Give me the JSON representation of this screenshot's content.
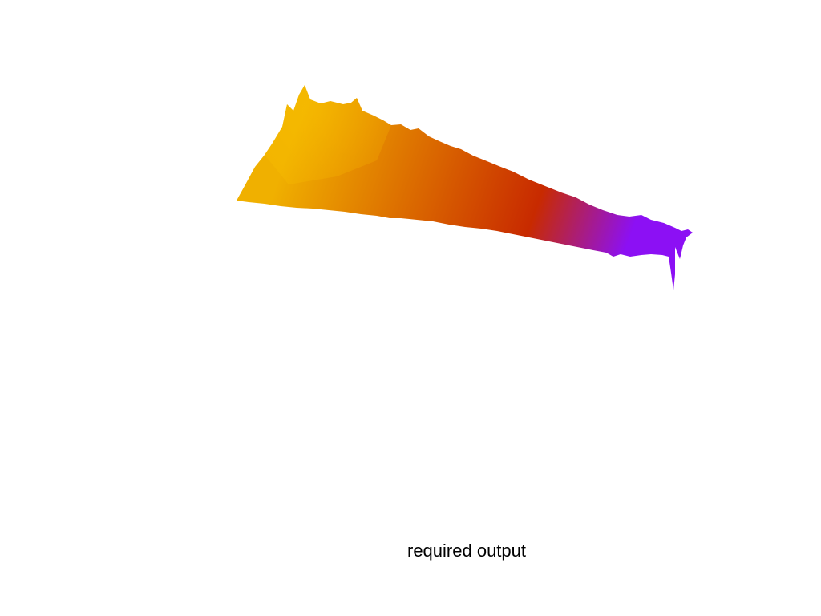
{
  "chart_data": {
    "type": "surface",
    "title": "",
    "xlabel": "required output",
    "ylabel": "",
    "zlabel": "",
    "axes_visible": false,
    "grid": false,
    "colormap": [
      "#f0b000",
      "#c82a00",
      "#8c10f4"
    ]
  }
}
